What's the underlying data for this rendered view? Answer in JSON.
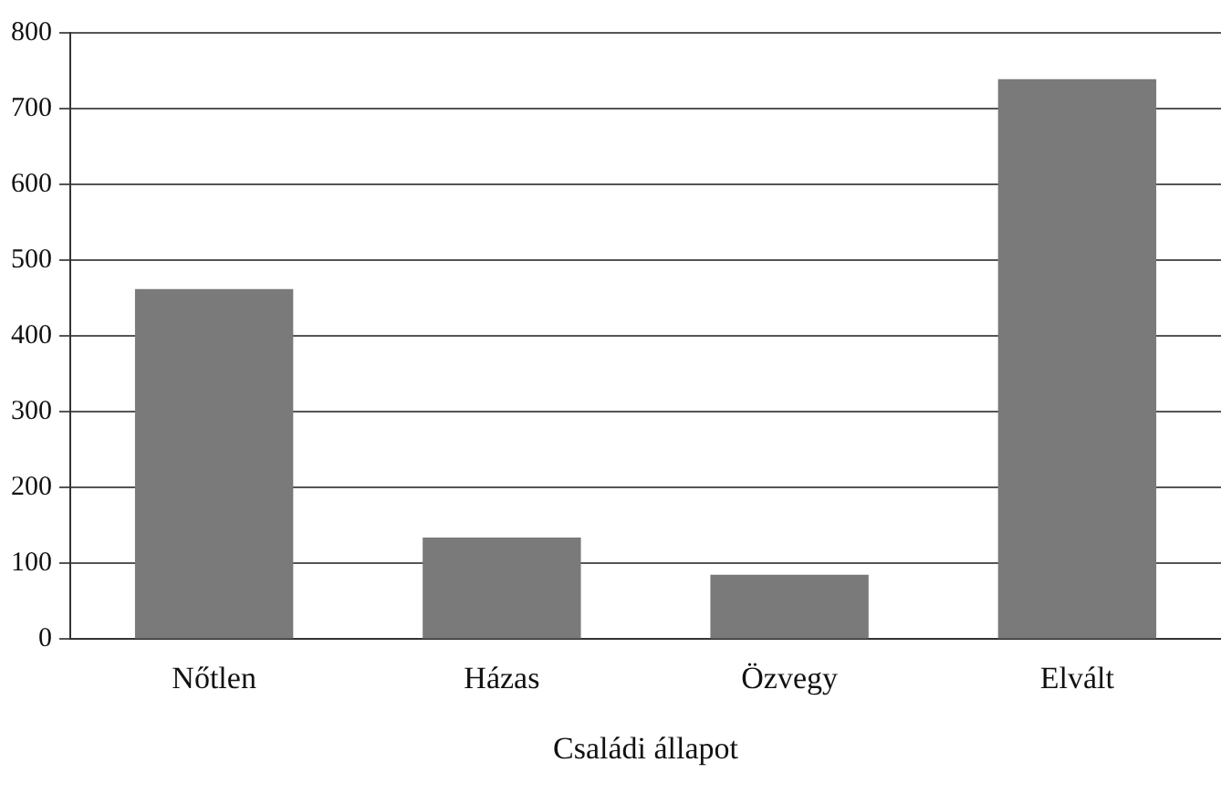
{
  "chart_data": {
    "type": "bar",
    "xlabel": "Családi állapot",
    "categories": [
      "Nőtlen",
      "Házas",
      "Özvegy",
      "Elvált"
    ],
    "values": [
      462,
      134,
      85,
      739
    ],
    "color": "#7a7a7a",
    "ylim": [
      0,
      800
    ],
    "yticks": [
      0,
      100,
      200,
      300,
      400,
      500,
      600,
      700,
      800
    ],
    "grid": "y",
    "legend": false
  }
}
